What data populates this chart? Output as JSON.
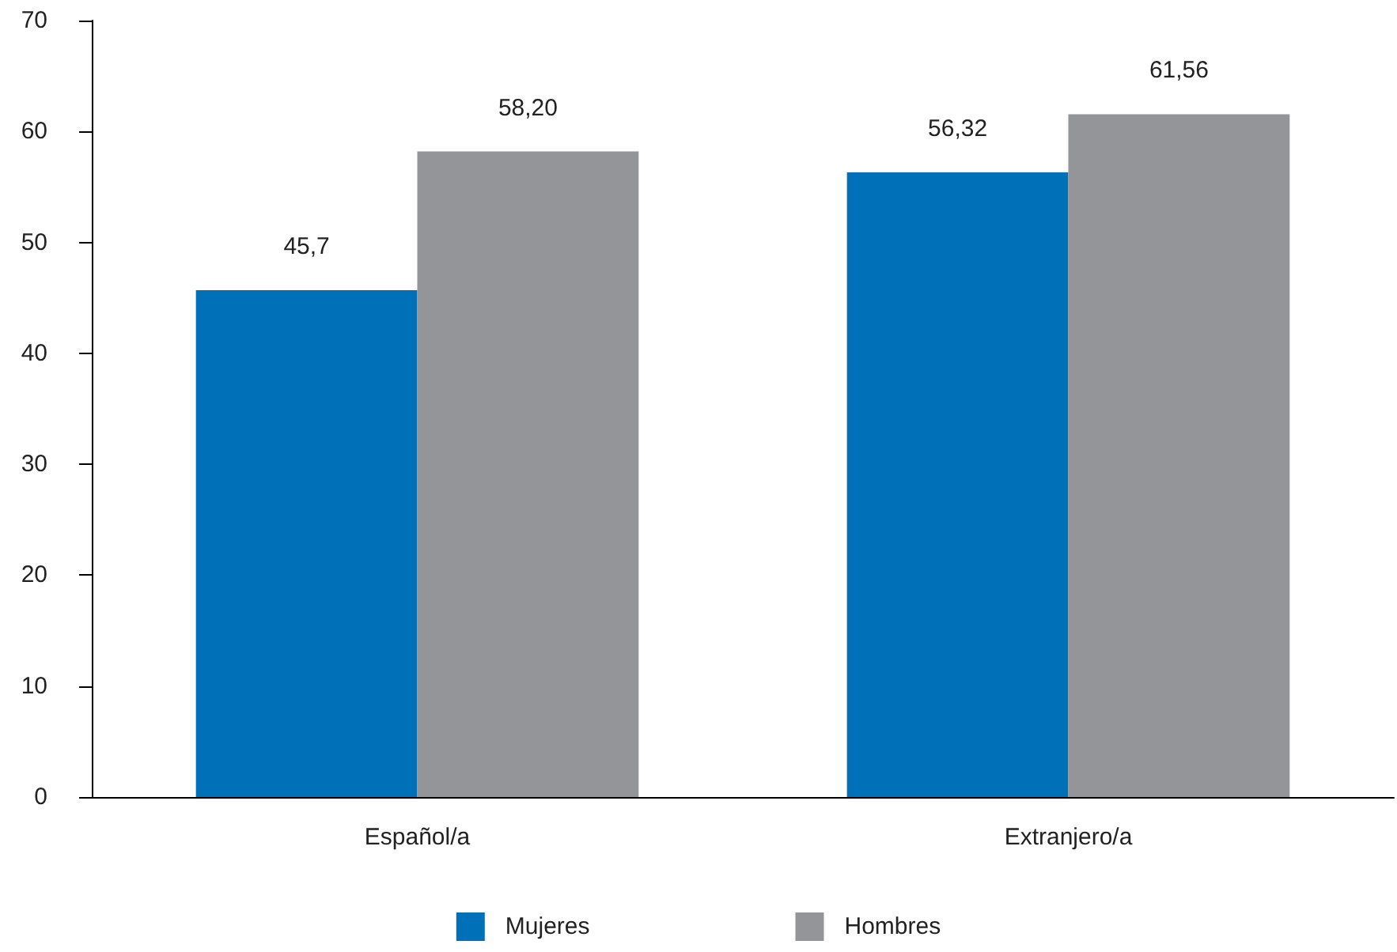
{
  "chart_data": {
    "type": "bar",
    "categories": [
      "Español/a",
      "Extranjero/a"
    ],
    "series": [
      {
        "name": "Mujeres",
        "color": "#0070b8",
        "values": [
          45.7,
          56.32
        ],
        "value_labels": [
          "45,7",
          "56,32"
        ]
      },
      {
        "name": "Hombres",
        "color": "#939598",
        "values": [
          58.2,
          61.56
        ],
        "value_labels": [
          "58,20",
          "61,56"
        ]
      }
    ],
    "ylim": [
      0,
      70
    ],
    "yticks": [
      0,
      10,
      20,
      30,
      40,
      50,
      60,
      70
    ],
    "grid": false,
    "legend": "bottom"
  }
}
